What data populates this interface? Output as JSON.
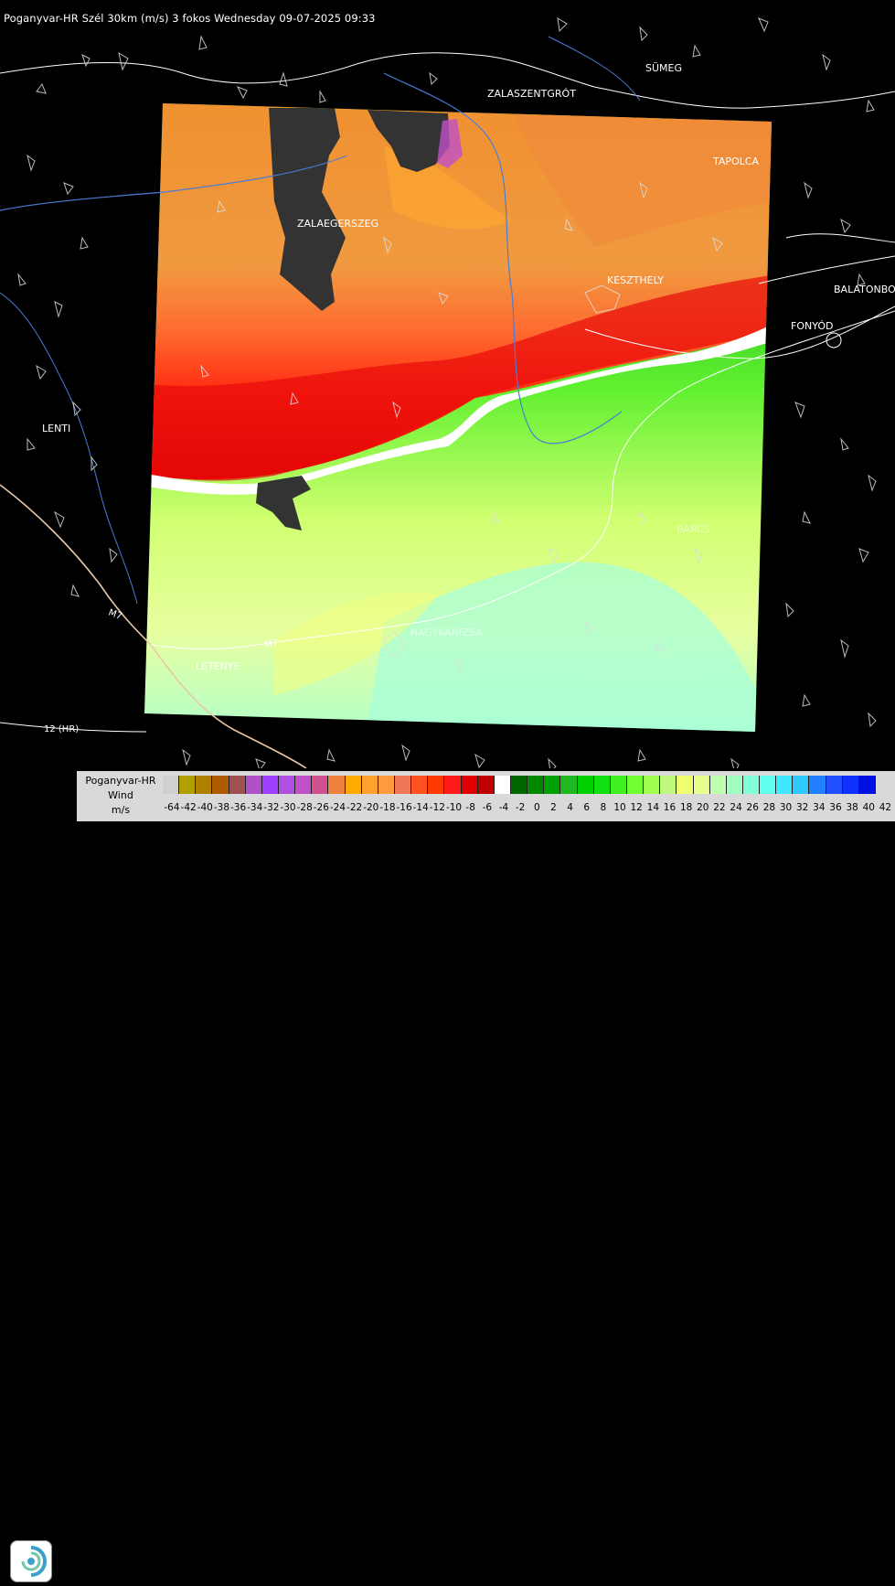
{
  "title": "Poganyvar-HR Szél 30km (m/s) 3 fokos Wednesday 09-07-2025 09:33",
  "towns": [
    {
      "name": "SÜMEG"
    },
    {
      "name": "ZALASZENTGRÓT"
    },
    {
      "name": "TAPOLCA"
    },
    {
      "name": "ZALAEGERSZEG"
    },
    {
      "name": "KESZTHELY"
    },
    {
      "name": "BALATONBO"
    },
    {
      "name": "FONYÓD"
    },
    {
      "name": "LENTI"
    },
    {
      "name": "BARCS"
    },
    {
      "name": "NAGYKANIZSA"
    },
    {
      "name": "LETENYE"
    }
  ],
  "road_labels": [
    "12 (HR)",
    "M7",
    "M7"
  ],
  "legend": {
    "line1": "Poganyvar-HR",
    "line2": "Wind",
    "line3": "m/s",
    "ticks": [
      "-64",
      "-42",
      "-40",
      "-38",
      "-36",
      "-34",
      "-32",
      "-30",
      "-28",
      "-26",
      "-24",
      "-22",
      "-20",
      "-18",
      "-16",
      "-14",
      "-12",
      "-10",
      "-8",
      "-6",
      "-4",
      "-2",
      "0",
      "2",
      "4",
      "6",
      "8",
      "10",
      "12",
      "14",
      "16",
      "18",
      "20",
      "22",
      "24",
      "26",
      "28",
      "30",
      "32",
      "34",
      "36",
      "38",
      "40",
      "42"
    ],
    "colors": [
      "#d0d0d0",
      "#b0a000",
      "#b08000",
      "#b05a00",
      "#a05050",
      "#b050c8",
      "#a040ff",
      "#b050e0",
      "#c050c8",
      "#d05090",
      "#f08040",
      "#ffaa00",
      "#ffa030",
      "#ff9a40",
      "#f07858",
      "#ff5020",
      "#ff3a00",
      "#ff1a1a",
      "#e00000",
      "#c00000",
      "#ffffff",
      "#006600",
      "#008800",
      "#00a000",
      "#20b820",
      "#00d000",
      "#10e010",
      "#40f020",
      "#70ff30",
      "#a0ff50",
      "#c0f880",
      "#f0ff70",
      "#e8ff90",
      "#c0ffb0",
      "#a0ffc0",
      "#80ffd8",
      "#60ffee",
      "#40e8ff",
      "#30c8ff",
      "#2080ff",
      "#2050ff",
      "#1030ff",
      "#0010e0"
    ]
  }
}
